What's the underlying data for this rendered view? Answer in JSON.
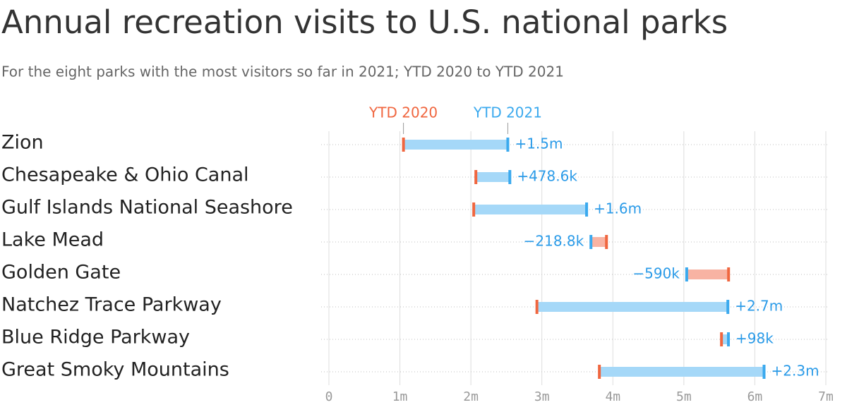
{
  "chart_data": {
    "type": "dumbbell",
    "title": "Annual recreation visits to U.S. national parks",
    "subtitle": "For the eight parks with the most visitors so far in 2021; YTD 2020 to YTD 2021",
    "categories": [
      "Zion",
      "Chesapeake & Ohio Canal",
      "Gulf Islands National Seashore",
      "Lake Mead",
      "Golden Gate",
      "Natchez Trace Parkway",
      "Blue Ridge Parkway",
      "Great Smoky Mountains"
    ],
    "series": [
      {
        "name": "YTD 2020",
        "color": "#f0663f",
        "values": [
          1.05,
          2.07,
          2.04,
          3.91,
          5.63,
          2.93,
          5.53,
          3.81
        ]
      },
      {
        "name": "YTD 2021",
        "color": "#3aa9ee",
        "values": [
          2.52,
          2.5486,
          3.63,
          3.6912,
          5.04,
          5.62,
          5.628,
          6.13
        ]
      }
    ],
    "change": {
      "values": [
        1.5,
        0.4786,
        1.6,
        -0.2188,
        -0.59,
        2.7,
        0.098,
        2.3
      ],
      "value_labels": [
        "+1.5m",
        "+478.6k",
        "+1.6m",
        "−218.8k",
        "−590k",
        "+2.7m",
        "+98k",
        "+2.3m"
      ],
      "colors": {
        "increase": "#a5d8f8",
        "decrease": "#f8b3a3"
      },
      "label_color": "#2b9be8"
    },
    "xlim": [
      0,
      7
    ],
    "xticks": [
      0,
      {
        "value": 1,
        "label": "1m"
      },
      {
        "value": 2,
        "label": "2m"
      },
      {
        "value": 3,
        "label": "3m"
      },
      {
        "value": 4,
        "label": "4m"
      },
      {
        "value": 5,
        "label": "5m"
      },
      {
        "value": 6,
        "label": "6m"
      },
      {
        "value": 7,
        "label": "7m"
      }
    ],
    "grid": true
  }
}
